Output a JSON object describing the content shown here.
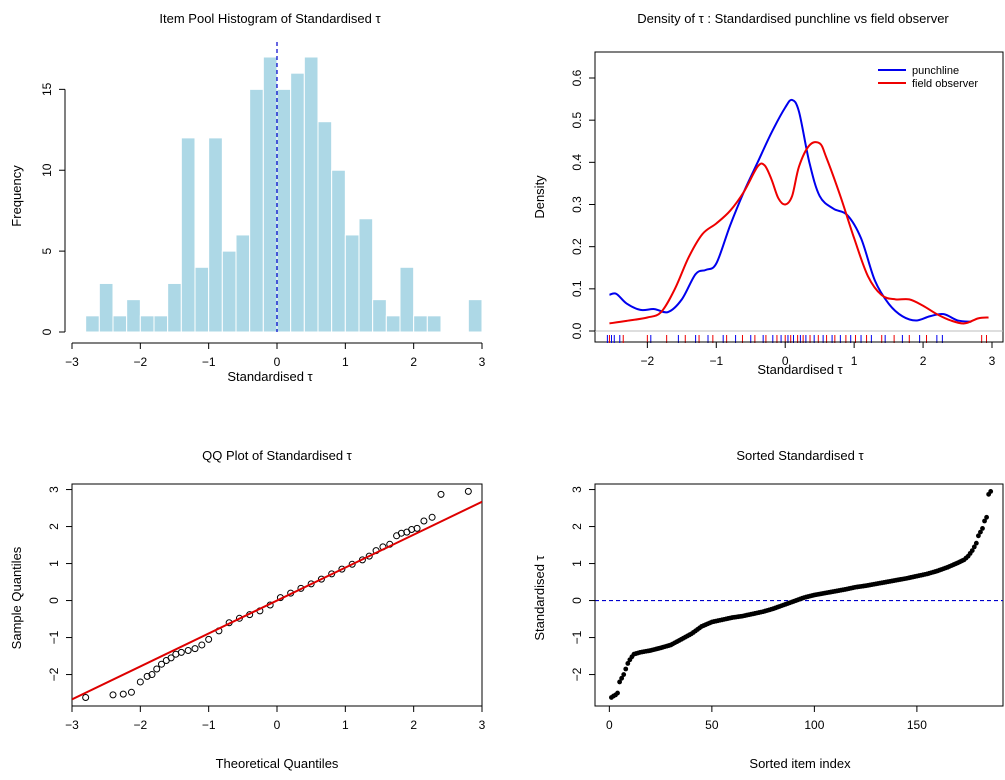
{
  "colors": {
    "histogram_bar": "#add8e6",
    "histogram_bar_border": "#ffffff",
    "reference_dashed": "#0000cd",
    "punchline": "#0000ee",
    "field_observer": "#ee0000",
    "qq_line": "#dd0000",
    "points": "#000000"
  },
  "chart_data": [
    {
      "type": "bar",
      "title": "Item Pool Histogram of Standardised  τ",
      "xlabel": "Standardised  τ",
      "ylabel": "Frequency",
      "xlim": [
        -3,
        3
      ],
      "ylim": [
        0,
        17
      ],
      "xticks": [
        -3,
        -2,
        -1,
        0,
        1,
        2,
        3
      ],
      "yticks": [
        0,
        5,
        10,
        15
      ],
      "bin_width": 0.2,
      "bin_starts": [
        -2.8,
        -2.6,
        -2.4,
        -2.2,
        -2.0,
        -1.8,
        -1.6,
        -1.4,
        -1.2,
        -1.0,
        -0.8,
        -0.6,
        -0.4,
        -0.2,
        0.0,
        0.2,
        0.4,
        0.6,
        0.8,
        1.0,
        1.2,
        1.4,
        1.6,
        1.8,
        2.0,
        2.2,
        2.4,
        2.6,
        2.8
      ],
      "values": [
        1,
        3,
        1,
        2,
        1,
        1,
        3,
        12,
        4,
        12,
        5,
        6,
        15,
        17,
        15,
        16,
        17,
        13,
        10,
        6,
        7,
        2,
        1,
        4,
        1,
        1,
        0,
        0,
        2
      ],
      "vline": 0,
      "grid": false
    },
    {
      "type": "line",
      "title": "Density of  τ : Standardised punchline vs field observer",
      "xlabel": "Standardised  τ",
      "ylabel": "Density",
      "xlim": [
        -2.6,
        3.0
      ],
      "ylim": [
        0,
        0.6
      ],
      "xticks": [
        -2,
        -1,
        0,
        1,
        2,
        3
      ],
      "yticks": [
        0.0,
        0.1,
        0.2,
        0.3,
        0.4,
        0.5,
        0.6
      ],
      "legend_position": "top-right",
      "grid": false,
      "series": [
        {
          "name": "punchline",
          "x": [
            -2.55,
            -2.45,
            -2.3,
            -2.1,
            -1.9,
            -1.7,
            -1.5,
            -1.3,
            -1.15,
            -1.0,
            -0.8,
            -0.6,
            -0.4,
            -0.2,
            0.0,
            0.1,
            0.2,
            0.35,
            0.5,
            0.7,
            0.9,
            1.1,
            1.3,
            1.5,
            1.7,
            1.9,
            2.1,
            2.3,
            2.5,
            2.7
          ],
          "y": [
            0.086,
            0.088,
            0.065,
            0.05,
            0.052,
            0.045,
            0.075,
            0.135,
            0.145,
            0.16,
            0.25,
            0.33,
            0.4,
            0.47,
            0.53,
            0.548,
            0.52,
            0.4,
            0.32,
            0.29,
            0.275,
            0.22,
            0.12,
            0.065,
            0.035,
            0.025,
            0.035,
            0.04,
            0.025,
            0.022
          ]
        },
        {
          "name": "field observer",
          "x": [
            -2.55,
            -2.3,
            -2.0,
            -1.8,
            -1.6,
            -1.4,
            -1.2,
            -1.0,
            -0.8,
            -0.6,
            -0.4,
            -0.3,
            -0.2,
            -0.1,
            0.0,
            0.1,
            0.2,
            0.35,
            0.5,
            0.6,
            0.8,
            1.0,
            1.2,
            1.4,
            1.6,
            1.8,
            2.0,
            2.2,
            2.4,
            2.6,
            2.8,
            2.95
          ],
          "y": [
            0.018,
            0.024,
            0.032,
            0.045,
            0.1,
            0.175,
            0.23,
            0.255,
            0.285,
            0.33,
            0.39,
            0.393,
            0.36,
            0.315,
            0.3,
            0.32,
            0.39,
            0.44,
            0.445,
            0.41,
            0.32,
            0.22,
            0.13,
            0.085,
            0.075,
            0.075,
            0.06,
            0.04,
            0.025,
            0.018,
            0.03,
            0.032
          ]
        }
      ]
    },
    {
      "type": "scatter",
      "title": "QQ Plot of Standardised τ",
      "xlabel": "Theoretical Quantiles",
      "ylabel": "Sample Quantiles",
      "xlim": [
        -3,
        3
      ],
      "ylim": [
        -2.85,
        3.15
      ],
      "xticks": [
        -3,
        -2,
        -1,
        0,
        1,
        2,
        3
      ],
      "yticks": [
        -2,
        -1,
        0,
        1,
        2,
        3
      ],
      "reference_line": {
        "intercept": 0.0,
        "slope": 0.89
      },
      "grid": false,
      "points": [
        [
          -2.8,
          -2.62
        ],
        [
          -2.4,
          -2.55
        ],
        [
          -2.25,
          -2.53
        ],
        [
          -2.13,
          -2.48
        ],
        [
          -2.0,
          -2.2
        ],
        [
          -1.9,
          -2.05
        ],
        [
          -1.83,
          -2.0
        ],
        [
          -1.76,
          -1.85
        ],
        [
          -1.69,
          -1.72
        ],
        [
          -1.62,
          -1.62
        ],
        [
          -1.55,
          -1.55
        ],
        [
          -1.48,
          -1.45
        ],
        [
          -1.4,
          -1.4
        ],
        [
          -1.3,
          -1.35
        ],
        [
          -1.2,
          -1.3
        ],
        [
          -1.1,
          -1.2
        ],
        [
          -1.0,
          -1.05
        ],
        [
          -0.85,
          -0.82
        ],
        [
          -0.7,
          -0.6
        ],
        [
          -0.55,
          -0.48
        ],
        [
          -0.4,
          -0.38
        ],
        [
          -0.25,
          -0.28
        ],
        [
          -0.1,
          -0.12
        ],
        [
          0.05,
          0.08
        ],
        [
          0.2,
          0.2
        ],
        [
          0.35,
          0.33
        ],
        [
          0.5,
          0.45
        ],
        [
          0.65,
          0.58
        ],
        [
          0.8,
          0.72
        ],
        [
          0.95,
          0.85
        ],
        [
          1.1,
          0.98
        ],
        [
          1.25,
          1.1
        ],
        [
          1.35,
          1.2
        ],
        [
          1.45,
          1.35
        ],
        [
          1.55,
          1.45
        ],
        [
          1.65,
          1.52
        ],
        [
          1.75,
          1.75
        ],
        [
          1.82,
          1.82
        ],
        [
          1.9,
          1.85
        ],
        [
          1.97,
          1.92
        ],
        [
          2.05,
          1.95
        ],
        [
          2.15,
          2.15
        ],
        [
          2.27,
          2.25
        ],
        [
          2.4,
          2.87
        ],
        [
          2.8,
          2.95
        ]
      ]
    },
    {
      "type": "scatter",
      "title": "Sorted Standardised  τ",
      "xlabel": "Sorted item index",
      "ylabel": "Standardised τ",
      "xlim": [
        -7,
        192
      ],
      "ylim": [
        -2.85,
        3.15
      ],
      "xticks": [
        0,
        50,
        100,
        150
      ],
      "yticks": [
        -2,
        -1,
        0,
        1,
        2,
        3
      ],
      "hline": 0,
      "grid": false,
      "points": [
        [
          1,
          -2.62
        ],
        [
          2,
          -2.58
        ],
        [
          3,
          -2.55
        ],
        [
          4,
          -2.5
        ],
        [
          5,
          -2.2
        ],
        [
          6,
          -2.1
        ],
        [
          7,
          -2.0
        ],
        [
          8,
          -1.85
        ],
        [
          9,
          -1.7
        ],
        [
          10,
          -1.6
        ],
        [
          11,
          -1.52
        ],
        [
          12,
          -1.45
        ],
        [
          15,
          -1.4
        ],
        [
          20,
          -1.35
        ],
        [
          25,
          -1.28
        ],
        [
          30,
          -1.2
        ],
        [
          35,
          -1.05
        ],
        [
          40,
          -0.9
        ],
        [
          45,
          -0.7
        ],
        [
          50,
          -0.58
        ],
        [
          55,
          -0.52
        ],
        [
          60,
          -0.46
        ],
        [
          65,
          -0.42
        ],
        [
          70,
          -0.36
        ],
        [
          75,
          -0.3
        ],
        [
          80,
          -0.22
        ],
        [
          85,
          -0.12
        ],
        [
          90,
          -0.02
        ],
        [
          95,
          0.08
        ],
        [
          100,
          0.15
        ],
        [
          105,
          0.2
        ],
        [
          110,
          0.25
        ],
        [
          115,
          0.3
        ],
        [
          120,
          0.36
        ],
        [
          125,
          0.4
        ],
        [
          130,
          0.45
        ],
        [
          135,
          0.5
        ],
        [
          140,
          0.55
        ],
        [
          145,
          0.6
        ],
        [
          150,
          0.66
        ],
        [
          155,
          0.72
        ],
        [
          160,
          0.8
        ],
        [
          165,
          0.9
        ],
        [
          170,
          1.02
        ],
        [
          173,
          1.1
        ],
        [
          175,
          1.2
        ],
        [
          177,
          1.35
        ],
        [
          179,
          1.55
        ],
        [
          180,
          1.75
        ],
        [
          181,
          1.85
        ],
        [
          182,
          1.95
        ],
        [
          183,
          2.15
        ],
        [
          184,
          2.25
        ],
        [
          185,
          2.87
        ],
        [
          186,
          2.95
        ]
      ]
    }
  ]
}
